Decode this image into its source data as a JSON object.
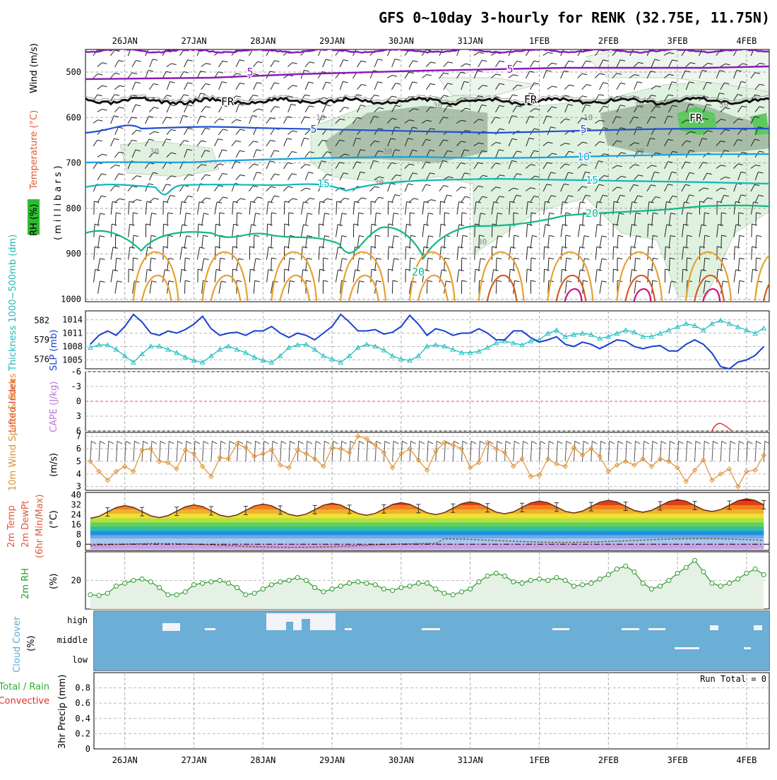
{
  "title": "GFS 0~10day 3-hourly for RENK (32.75E, 11.75N)",
  "dates": [
    "26JAN",
    "27JAN",
    "28JAN",
    "29JAN",
    "30JAN",
    "31JAN",
    "1FEB",
    "2FEB",
    "3FEB",
    "4FEB"
  ],
  "colors": {
    "wind_barb": "#000000",
    "grid": "#a0a0a0",
    "rh_fill": "#dcefdc",
    "rh_dark": "#9db49d",
    "rh_bright": "#5fc75f",
    "temp_purple": "#8a1bb5",
    "temp_black": "#000000",
    "temp_blue": "#2050d0",
    "temp_sky": "#18a0e0",
    "temp_teal": "#10b8b8",
    "temp_green": "#10b888",
    "temp_orange": "#e8a030",
    "temp_red": "#d85a20",
    "temp_magenta": "#d0107a",
    "slp": "#1a3fd0",
    "thickness": "#20c0c0",
    "lifted": "#e03030",
    "cape": "#c070e0",
    "wind10m": "#e09030",
    "rh2m": "#2a9a2a",
    "cloud": "#6baed6",
    "precip_total": "#30b030",
    "precip_conv": "#e03030"
  },
  "upper": {
    "ylabel_rh": "RH (%)",
    "ylabel_temp": "Temperature (°C)",
    "ylabel_wind": "Wind (m/s)",
    "ylabel_mb": "(millibars)",
    "ticks": [
      "500",
      "600",
      "700",
      "800",
      "900",
      "1000"
    ],
    "contour_labels": [
      {
        "text": "5",
        "color": "temp_purple",
        "series": "purple"
      },
      {
        "text": "5",
        "color": "temp_purple",
        "series": "purple"
      },
      {
        "text": "FR",
        "color": "temp_black",
        "series": "fr"
      },
      {
        "text": "FR",
        "color": "temp_black",
        "series": "fr"
      },
      {
        "text": "FR",
        "color": "temp_black",
        "series": "fr"
      },
      {
        "text": "5",
        "color": "temp_blue",
        "series": "blue"
      },
      {
        "text": "5",
        "color": "temp_blue",
        "series": "blue"
      },
      {
        "text": "10",
        "color": "temp_sky",
        "series": "sky"
      },
      {
        "text": "15",
        "color": "temp_teal",
        "series": "teal"
      },
      {
        "text": "15",
        "color": "temp_teal",
        "series": "teal"
      },
      {
        "text": "20",
        "color": "temp_green",
        "series": "green"
      },
      {
        "text": "20",
        "color": "temp_green",
        "series": "green"
      }
    ],
    "rh_labels": [
      "30",
      "10",
      "30",
      "30",
      "30",
      "30",
      "30",
      "10",
      "30",
      "30"
    ]
  },
  "press": {
    "ylabel_thick": "Thickness 1000~500mb (dm)",
    "ylabel_slp": "SLP (mb)",
    "left_ticks": [
      "582",
      "579",
      "576"
    ],
    "right_ticks": [
      "1014",
      "1011",
      "1008",
      "1005"
    ]
  },
  "li": {
    "ylabel_li": "Lifted Index",
    "ylabel_cape": "CAPE (J/kg)",
    "ticks": [
      "-6",
      "-3",
      "0",
      "3",
      "6"
    ]
  },
  "wind10": {
    "ylabel": "10m Wind Speed & Barbs",
    "unit": "(m/s)",
    "ticks": [
      "7",
      "6",
      "5",
      "4",
      "3"
    ]
  },
  "t2m": {
    "ylabel_1": "2m Temp",
    "ylabel_2": "2m DewPt",
    "ylabel_3": "(6hr Min/Max)",
    "unit": "(°C)",
    "ticks": [
      "40",
      "32",
      "24",
      "16",
      "8",
      "0"
    ]
  },
  "rh2m": {
    "ylabel": "2m RH",
    "unit": "(%)",
    "ticks": [
      "20"
    ]
  },
  "cloud": {
    "ylabel": "Cloud Cover",
    "unit": "(%)",
    "levels": [
      "high",
      "middle",
      "low"
    ]
  },
  "precip": {
    "ylabel_1": "Total / Rain",
    "ylabel_2": "Convective",
    "ylabel_3": "3hr Precip (mm)",
    "run_total": "Run Total = 0",
    "ticks": [
      "0.8",
      "0.6",
      "0.4",
      "0.2",
      "0"
    ]
  },
  "chart_data": [
    {
      "type": "line",
      "title": "SLP (mb)",
      "x": [
        "25JAN12",
        "25JAN15",
        "25JAN18",
        "25JAN21",
        "26JAN00",
        "26JAN03",
        "26JAN06",
        "26JAN09",
        "26JAN12",
        "26JAN15",
        "26JAN18",
        "26JAN21",
        "27JAN00",
        "27JAN03",
        "27JAN06",
        "27JAN09",
        "27JAN12",
        "27JAN15",
        "27JAN18",
        "27JAN21",
        "28JAN00",
        "28JAN03",
        "28JAN06",
        "28JAN09",
        "28JAN12",
        "28JAN15",
        "28JAN18",
        "28JAN21",
        "29JAN00",
        "29JAN03",
        "29JAN06",
        "29JAN09",
        "29JAN12",
        "29JAN15",
        "29JAN18",
        "29JAN21",
        "30JAN00",
        "30JAN03",
        "30JAN06",
        "30JAN09",
        "30JAN12",
        "30JAN15",
        "30JAN18",
        "30JAN21",
        "31JAN00",
        "31JAN03",
        "31JAN06",
        "31JAN09",
        "31JAN12",
        "31JAN15",
        "31JAN18",
        "31JAN21",
        "1FEB00",
        "1FEB03",
        "1FEB06",
        "1FEB09",
        "1FEB12",
        "1FEB15",
        "1FEB18",
        "1FEB21",
        "2FEB00",
        "2FEB03",
        "2FEB06",
        "2FEB09",
        "2FEB12",
        "2FEB15",
        "2FEB18",
        "2FEB21",
        "3FEB00",
        "3FEB03",
        "3FEB06",
        "3FEB09",
        "3FEB12",
        "3FEB15",
        "3FEB18",
        "3FEB21",
        "4FEB00",
        "4FEB03",
        "4FEB06"
      ],
      "series": [
        {
          "name": "SLP",
          "values": [
            1008.5,
            1010.5,
            1011.5,
            1010.5,
            1012.5,
            1015.2,
            1013.5,
            1011,
            1010.5,
            1011.5,
            1011,
            1011.8,
            1013,
            1014.8,
            1012,
            1010.5,
            1011,
            1011.2,
            1010.5,
            1011.5,
            1011.5,
            1012.5,
            1011,
            1010,
            1011,
            1010.5,
            1009.5,
            1011,
            1012.5,
            1015.2,
            1013.5,
            1011.5,
            1011.5,
            1011.8,
            1010.8,
            1011.2,
            1012.5,
            1015,
            1013,
            1010.5,
            1012,
            1011.5,
            1010.5,
            1011,
            1011,
            1012,
            1011,
            1009.5,
            1009.5,
            1011.5,
            1011.5,
            1010,
            1009,
            1009.5,
            1010.2,
            1008.5,
            1008,
            1009,
            1008.5,
            1007.5,
            1008.5,
            1009.5,
            1009.2,
            1008,
            1007.5,
            1008,
            1008.2,
            1007,
            1007,
            1008.5,
            1009.5,
            1008.5,
            1006.5,
            1003.5,
            1003,
            1004.5,
            1005,
            1006,
            1008
          ]
        }
      ],
      "ylim": [
        1003,
        1016
      ]
    },
    {
      "type": "line",
      "title": "Thickness 1000~500mb (dm)",
      "x": [
        "25JAN12",
        "25JAN15",
        "25JAN18",
        "25JAN21",
        "26JAN00",
        "26JAN03",
        "26JAN06",
        "26JAN09",
        "26JAN12",
        "26JAN15",
        "26JAN18",
        "26JAN21",
        "27JAN00",
        "27JAN03",
        "27JAN06",
        "27JAN09",
        "27JAN12",
        "27JAN15",
        "27JAN18",
        "27JAN21",
        "28JAN00",
        "28JAN03",
        "28JAN06",
        "28JAN09",
        "28JAN12",
        "28JAN15",
        "28JAN18",
        "28JAN21",
        "29JAN00",
        "29JAN03",
        "29JAN06",
        "29JAN09",
        "29JAN12",
        "29JAN15",
        "29JAN18",
        "29JAN21",
        "30JAN00",
        "30JAN03",
        "30JAN06",
        "30JAN09",
        "30JAN12",
        "30JAN15",
        "30JAN18",
        "30JAN21",
        "31JAN00",
        "31JAN03",
        "31JAN06",
        "31JAN09",
        "31JAN12",
        "31JAN15",
        "31JAN18",
        "31JAN21",
        "1FEB00",
        "1FEB03",
        "1FEB06",
        "1FEB09",
        "1FEB12",
        "1FEB15",
        "1FEB18",
        "1FEB21",
        "2FEB00",
        "2FEB03",
        "2FEB06",
        "2FEB09",
        "2FEB12",
        "2FEB15",
        "2FEB18",
        "2FEB21",
        "3FEB00",
        "3FEB03",
        "3FEB06",
        "3FEB09",
        "3FEB12",
        "3FEB15",
        "3FEB18",
        "3FEB21",
        "4FEB00",
        "4FEB03",
        "4FEB06"
      ],
      "series": [
        {
          "name": "Thickness",
          "values": [
            577.8,
            578.2,
            578.2,
            577.5,
            576.5,
            575.5,
            576.8,
            578,
            578,
            577.5,
            577,
            576.3,
            575.8,
            575.5,
            576.5,
            577.5,
            578,
            577.5,
            577,
            576.3,
            575.8,
            575.5,
            576.5,
            577.8,
            578.2,
            578.3,
            577.5,
            576.5,
            576,
            575.5,
            576.5,
            577.8,
            578.3,
            578,
            577.4,
            576.5,
            576,
            575.8,
            576.5,
            578,
            578.2,
            578,
            577.5,
            577,
            577,
            577.2,
            577.8,
            578.5,
            578.8,
            578.5,
            578.2,
            578.8,
            579,
            580,
            580.5,
            579.5,
            579.8,
            580,
            579.8,
            579.2,
            579.5,
            580,
            580.5,
            580.2,
            579.5,
            579.5,
            580,
            580.5,
            581,
            581.5,
            581.2,
            580.5,
            581.5,
            582,
            581.5,
            581,
            580.5,
            580,
            580.8
          ]
        }
      ],
      "ylim": [
        574.5,
        583.5
      ]
    },
    {
      "type": "line",
      "title": "10m Wind Speed & Barbs",
      "ylabel": "(m/s)",
      "x": [
        "25JAN12",
        "25JAN15",
        "25JAN18",
        "25JAN21",
        "26JAN00",
        "26JAN03",
        "26JAN06",
        "26JAN09",
        "26JAN12",
        "26JAN15",
        "26JAN18",
        "26JAN21",
        "27JAN00",
        "27JAN03",
        "27JAN06",
        "27JAN09",
        "27JAN12",
        "27JAN15",
        "27JAN18",
        "27JAN21",
        "28JAN00",
        "28JAN03",
        "28JAN06",
        "28JAN09",
        "28JAN12",
        "28JAN15",
        "28JAN18",
        "28JAN21",
        "29JAN00",
        "29JAN03",
        "29JAN06",
        "29JAN09",
        "29JAN12",
        "29JAN15",
        "29JAN18",
        "29JAN21",
        "30JAN00",
        "30JAN03",
        "30JAN06",
        "30JAN09",
        "30JAN12",
        "30JAN15",
        "30JAN18",
        "30JAN21",
        "31JAN00",
        "31JAN03",
        "31JAN06",
        "31JAN09",
        "31JAN12",
        "31JAN15",
        "31JAN18",
        "31JAN21",
        "1FEB00",
        "1FEB03",
        "1FEB06",
        "1FEB09",
        "1FEB12",
        "1FEB15",
        "1FEB18",
        "1FEB21",
        "2FEB00",
        "2FEB03",
        "2FEB06",
        "2FEB09",
        "2FEB12",
        "2FEB15",
        "2FEB18",
        "2FEB21",
        "3FEB00",
        "3FEB03",
        "3FEB06",
        "3FEB09",
        "3FEB12",
        "3FEB15",
        "3FEB18",
        "3FEB21",
        "4FEB00",
        "4FEB03",
        "4FEB06"
      ],
      "series": [
        {
          "name": "10m Wind Speed",
          "values": [
            5.0,
            4.2,
            3.5,
            4.2,
            4.6,
            4.2,
            5.9,
            6.0,
            5.0,
            4.9,
            4.4,
            5.9,
            5.6,
            4.6,
            3.8,
            5.3,
            5.2,
            6.4,
            6.1,
            5.4,
            5.6,
            5.9,
            4.7,
            4.5,
            5.9,
            5.6,
            5.2,
            4.6,
            6.1,
            6.0,
            5.7,
            7.0,
            6.8,
            6.3,
            5.7,
            4.5,
            5.6,
            6.0,
            5.1,
            4.3,
            5.8,
            6.5,
            6.3,
            6.0,
            4.5,
            4.9,
            6.5,
            6.0,
            5.7,
            4.6,
            5.2,
            3.8,
            3.9,
            5.2,
            4.8,
            4.6,
            6.1,
            5.5,
            6.0,
            5.4,
            4.2,
            4.7,
            5.0,
            4.7,
            5.2,
            4.6,
            5.2,
            5.0,
            4.5,
            3.4,
            4.3,
            5.1,
            3.5,
            4.0,
            4.4,
            3.0,
            4.2,
            4.3,
            5.5
          ]
        }
      ],
      "ylim": [
        2.7,
        7.3
      ]
    },
    {
      "type": "line",
      "title": "2m RH",
      "ylabel": "(%)",
      "x": [
        "25JAN12",
        "25JAN15",
        "25JAN18",
        "25JAN21",
        "26JAN00",
        "26JAN03",
        "26JAN06",
        "26JAN09",
        "26JAN12",
        "26JAN15",
        "26JAN18",
        "26JAN21",
        "27JAN00",
        "27JAN03",
        "27JAN06",
        "27JAN09",
        "27JAN12",
        "27JAN15",
        "27JAN18",
        "27JAN21",
        "28JAN00",
        "28JAN03",
        "28JAN06",
        "28JAN09",
        "28JAN12",
        "28JAN15",
        "28JAN18",
        "28JAN21",
        "29JAN00",
        "29JAN03",
        "29JAN06",
        "29JAN09",
        "29JAN12",
        "29JAN15",
        "29JAN18",
        "29JAN21",
        "30JAN00",
        "30JAN03",
        "30JAN06",
        "30JAN09",
        "30JAN12",
        "30JAN15",
        "30JAN18",
        "30JAN21",
        "31JAN00",
        "31JAN03",
        "31JAN06",
        "31JAN09",
        "31JAN12",
        "31JAN15",
        "31JAN18",
        "31JAN21",
        "1FEB00",
        "1FEB03",
        "1FEB06",
        "1FEB09",
        "1FEB12",
        "1FEB15",
        "1FEB18",
        "1FEB21",
        "2FEB00",
        "2FEB03",
        "2FEB06",
        "2FEB09",
        "2FEB12",
        "2FEB15",
        "2FEB18",
        "2FEB21",
        "3FEB00",
        "3FEB03",
        "3FEB06",
        "3FEB09",
        "3FEB12",
        "3FEB15",
        "3FEB18",
        "3FEB21",
        "4FEB00",
        "4FEB03",
        "4FEB06"
      ],
      "series": [
        {
          "name": "2m RH",
          "values": [
            10,
            9.5,
            11,
            16,
            18,
            20,
            21,
            19,
            15,
            10,
            10,
            12,
            17,
            18,
            19,
            20,
            18,
            15,
            10,
            11,
            14,
            17,
            19,
            20,
            22,
            20,
            15,
            12,
            14,
            16,
            18,
            19,
            18,
            17,
            14,
            13,
            15,
            16,
            18,
            18,
            14,
            11,
            10,
            12,
            14,
            19,
            23,
            25,
            23,
            19,
            18,
            20,
            21,
            20,
            22,
            20,
            16,
            17,
            18,
            21,
            24,
            28,
            30,
            26,
            18,
            14,
            16,
            20,
            25,
            29,
            34,
            26,
            18,
            16,
            18,
            21,
            25,
            28,
            24
          ]
        }
      ],
      "ylim": [
        0,
        40
      ]
    },
    {
      "type": "bar",
      "title": "3hr Precip (mm)",
      "run_total": "Run Total = 0",
      "values": [],
      "ylim": [
        0,
        1.0
      ]
    }
  ]
}
